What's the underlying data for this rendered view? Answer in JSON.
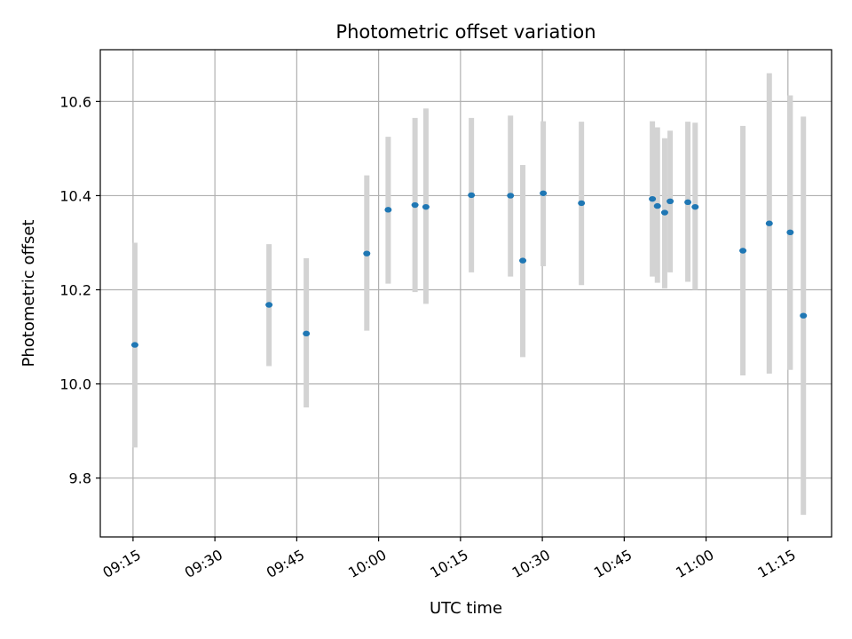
{
  "chart_data": {
    "type": "scatter",
    "title": "Photometric offset variation",
    "xlabel": "UTC time",
    "ylabel": "Photometric offset",
    "xlim": [
      "09:09",
      "11:23"
    ],
    "ylim": [
      9.675,
      10.71
    ],
    "x_ticks": [
      "09:15",
      "09:30",
      "09:45",
      "10:00",
      "10:15",
      "10:30",
      "10:45",
      "11:00",
      "11:15"
    ],
    "y_ticks": [
      9.8,
      10.0,
      10.2,
      10.4,
      10.6
    ],
    "grid": true,
    "colors": {
      "point": "#1f77b4",
      "errorbar": "#d3d3d3",
      "grid": "#b0b0b0"
    },
    "series": [
      {
        "points": [
          {
            "x": "09:15:20",
            "y": 10.083,
            "ylow": 9.865,
            "yhigh": 10.3
          },
          {
            "x": "09:39:55",
            "y": 10.168,
            "ylow": 10.038,
            "yhigh": 10.297
          },
          {
            "x": "09:46:45",
            "y": 10.107,
            "ylow": 9.95,
            "yhigh": 10.267
          },
          {
            "x": "09:57:50",
            "y": 10.277,
            "ylow": 10.113,
            "yhigh": 10.443
          },
          {
            "x": "10:01:45",
            "y": 10.37,
            "ylow": 10.213,
            "yhigh": 10.525
          },
          {
            "x": "10:06:40",
            "y": 10.38,
            "ylow": 10.195,
            "yhigh": 10.565
          },
          {
            "x": "10:08:40",
            "y": 10.376,
            "ylow": 10.17,
            "yhigh": 10.585
          },
          {
            "x": "10:17:00",
            "y": 10.401,
            "ylow": 10.237,
            "yhigh": 10.565
          },
          {
            "x": "10:24:10",
            "y": 10.4,
            "ylow": 10.228,
            "yhigh": 10.57
          },
          {
            "x": "10:26:25",
            "y": 10.262,
            "ylow": 10.057,
            "yhigh": 10.465
          },
          {
            "x": "10:30:10",
            "y": 10.405,
            "ylow": 10.25,
            "yhigh": 10.558
          },
          {
            "x": "10:37:10",
            "y": 10.384,
            "ylow": 10.21,
            "yhigh": 10.557
          },
          {
            "x": "10:50:10",
            "y": 10.393,
            "ylow": 10.228,
            "yhigh": 10.558
          },
          {
            "x": "10:51:05",
            "y": 10.378,
            "ylow": 10.215,
            "yhigh": 10.545
          },
          {
            "x": "10:52:25",
            "y": 10.364,
            "ylow": 10.203,
            "yhigh": 10.522
          },
          {
            "x": "10:53:25",
            "y": 10.388,
            "ylow": 10.237,
            "yhigh": 10.538
          },
          {
            "x": "10:56:40",
            "y": 10.386,
            "ylow": 10.217,
            "yhigh": 10.557
          },
          {
            "x": "10:58:00",
            "y": 10.376,
            "ylow": 10.2,
            "yhigh": 10.555
          },
          {
            "x": "11:06:45",
            "y": 10.283,
            "ylow": 10.018,
            "yhigh": 10.548
          },
          {
            "x": "11:11:35",
            "y": 10.341,
            "ylow": 10.022,
            "yhigh": 10.66
          },
          {
            "x": "11:15:25",
            "y": 10.322,
            "ylow": 10.03,
            "yhigh": 10.613
          },
          {
            "x": "11:17:50",
            "y": 10.145,
            "ylow": 9.722,
            "yhigh": 10.568
          }
        ]
      }
    ]
  }
}
